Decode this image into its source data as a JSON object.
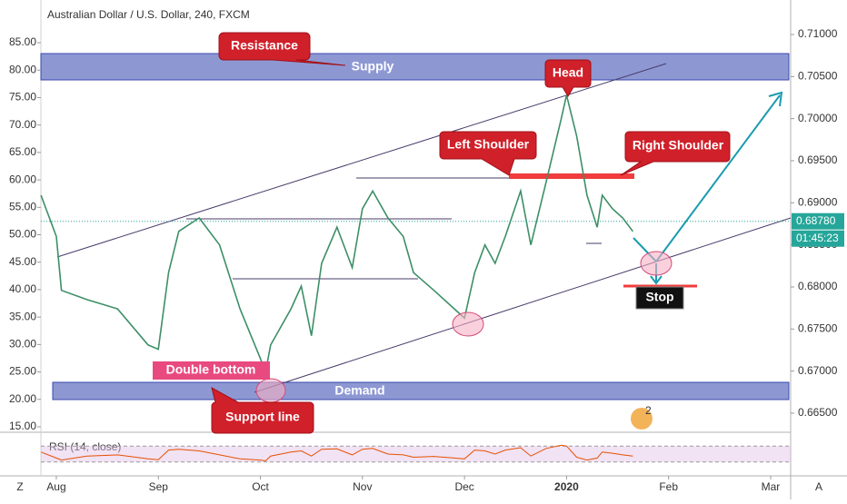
{
  "chart_data": {
    "type": "line",
    "title": "Australian Dollar / U.S. Dollar, 240, FXCM",
    "x": [
      -0.15,
      0.0,
      0.05,
      0.3,
      0.6,
      0.9,
      1.0,
      1.1,
      1.2,
      1.4,
      1.6,
      1.8,
      2.0,
      2.05,
      2.1,
      2.3,
      2.4,
      2.5,
      2.6,
      2.75,
      2.9,
      3.0,
      3.1,
      3.25,
      3.4,
      3.5,
      3.7,
      3.9,
      4.0,
      4.1,
      4.2,
      4.3,
      4.4,
      4.55,
      4.65,
      4.8,
      4.95,
      5.0,
      5.1,
      5.2,
      5.3,
      5.35,
      5.45,
      5.55,
      5.65
    ],
    "series": [
      {
        "color": "#3d8f67",
        "axis": "y2",
        "values": [
          0.6909,
          0.686,
          0.6796,
          0.6785,
          0.6774,
          0.6731,
          0.6726,
          0.6817,
          0.6866,
          0.6882,
          0.685,
          0.6774,
          0.6715,
          0.6699,
          0.6731,
          0.6774,
          0.6801,
          0.6742,
          0.6828,
          0.6871,
          0.6823,
          0.6893,
          0.6914,
          0.6882,
          0.686,
          0.6817,
          0.6796,
          0.6774,
          0.6763,
          0.6817,
          0.685,
          0.6828,
          0.686,
          0.6914,
          0.685,
          0.6925,
          0.7001,
          0.7028,
          0.6979,
          0.6909,
          0.6871,
          0.6909,
          0.6893,
          0.6882,
          0.6866
        ]
      }
    ],
    "xlim": [
      -0.151,
      7.196
    ],
    "xticks": [
      {
        "value": 0,
        "label": "Aug"
      },
      {
        "value": 1,
        "label": "Sep"
      },
      {
        "value": 2,
        "label": "Oct"
      },
      {
        "value": 3,
        "label": "Nov"
      },
      {
        "value": 4,
        "label": "Dec"
      },
      {
        "value": 5,
        "label": "2020"
      },
      {
        "value": 6,
        "label": "Feb"
      },
      {
        "value": 7,
        "label": "Mar"
      }
    ],
    "ylim": [
      14.17,
      91.13
    ],
    "yticks": [
      {
        "value": 15,
        "label": "15.00"
      },
      {
        "value": 20,
        "label": "20.00"
      },
      {
        "value": 25,
        "label": "25.00"
      },
      {
        "value": 30,
        "label": "30.00"
      },
      {
        "value": 35,
        "label": "35.00"
      },
      {
        "value": 40,
        "label": "40.00"
      },
      {
        "value": 45,
        "label": "45.00"
      },
      {
        "value": 50,
        "label": "50.00"
      },
      {
        "value": 55,
        "label": "55.00"
      },
      {
        "value": 60,
        "label": "60.00"
      },
      {
        "value": 65,
        "label": "65.00"
      },
      {
        "value": 70,
        "label": "70.00"
      },
      {
        "value": 75,
        "label": "75.00"
      },
      {
        "value": 80,
        "label": "80.00"
      },
      {
        "value": 85,
        "label": "85.00"
      }
    ],
    "y2lim": [
      0.66284,
      0.71302
    ],
    "y2ticks": [
      {
        "value": 0.665,
        "label": "0.66500"
      },
      {
        "value": 0.67,
        "label": "0.67000"
      },
      {
        "value": 0.675,
        "label": "0.67500"
      },
      {
        "value": 0.68,
        "label": "0.68000"
      },
      {
        "value": 0.685,
        "label": "0.68500"
      },
      {
        "value": 0.69,
        "label": "0.69000"
      },
      {
        "value": 0.695,
        "label": "0.69500"
      },
      {
        "value": 0.7,
        "label": "0.70000"
      },
      {
        "value": 0.705,
        "label": "0.70500"
      },
      {
        "value": 0.71,
        "label": "0.71000"
      }
    ],
    "last_price": {
      "value": 0.6878,
      "label": "0.68780"
    },
    "countdown": "01:45:23",
    "annotations": {
      "resistance": "Resistance",
      "supply": "Supply",
      "head": "Head",
      "left_shoulder": "Left Shoulder",
      "right_shoulder": "Right Shoulder",
      "double_bottom": "Double bottom",
      "demand": "Demand",
      "support_line": "Support line",
      "stop": "Stop",
      "badge": "2"
    },
    "rsi": {
      "label": "RSI (14, close)",
      "ylim": [
        0,
        100
      ],
      "levels": [
        30,
        70
      ],
      "values": [
        55,
        40,
        35,
        45,
        48,
        38,
        36,
        60,
        62,
        58,
        48,
        38,
        35,
        33,
        45,
        55,
        58,
        45,
        62,
        63,
        48,
        62,
        64,
        50,
        48,
        42,
        44,
        40,
        38,
        60,
        58,
        50,
        60,
        66,
        45,
        64,
        72,
        70,
        42,
        35,
        40,
        55,
        52,
        48,
        45
      ]
    },
    "corner_left": "Z",
    "corner_right": "A"
  }
}
